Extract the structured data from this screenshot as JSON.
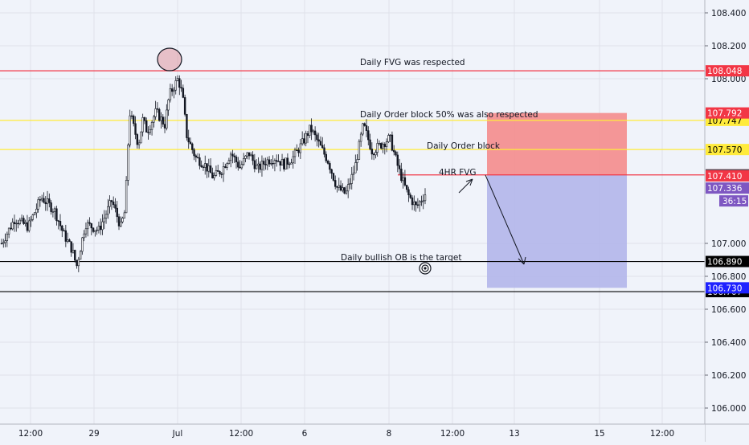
{
  "chart_data": {
    "type": "candlestick",
    "ylim": [
      105.9,
      108.5
    ],
    "y_ticks": [
      {
        "value": 108.4,
        "label": "108.400"
      },
      {
        "value": 108.2,
        "label": "108.200"
      },
      {
        "value": 108.0,
        "label": "108.000"
      },
      {
        "value": 107.0,
        "label": "107.000"
      },
      {
        "value": 106.8,
        "label": "106.800"
      },
      {
        "value": 106.6,
        "label": "106.600"
      },
      {
        "value": 106.4,
        "label": "106.400"
      },
      {
        "value": 106.2,
        "label": "106.200"
      },
      {
        "value": 106.0,
        "label": "106.000"
      }
    ],
    "x_ticks": [
      "12:00",
      "29",
      "Jul",
      "12:00",
      "6",
      "8",
      "12:00",
      "13",
      "15",
      "12:00"
    ],
    "horizontal_levels": [
      {
        "value": 108.048,
        "label": "108.048",
        "color": "#f23645",
        "text_color": "#ffffff",
        "name": "daily-fvg-line"
      },
      {
        "value": 107.747,
        "label": "107.747",
        "color": "#ffeb3b",
        "text_color": "#000000",
        "name": "order-block-50-line"
      },
      {
        "value": 107.57,
        "label": "107.570",
        "color": "#ffeb3b",
        "text_color": "#000000",
        "name": "daily-order-block-line"
      },
      {
        "value": 107.416,
        "label": "107.416",
        "color": "#f23645",
        "text_color": "#ffffff",
        "name": "4hr-fvg-line"
      },
      {
        "value": 106.89,
        "label": "106.890",
        "color": "#000000",
        "text_color": "#ffffff",
        "name": "daily-bullish-ob-line"
      },
      {
        "value": 106.707,
        "label": "106.707",
        "color": "#000000",
        "text_color": "#ffffff",
        "name": "lower-black-line"
      }
    ],
    "price_tags": [
      {
        "value": 107.792,
        "label": "107.792",
        "bg": "#f23645",
        "fg": "#ffffff"
      },
      {
        "value": 107.416,
        "label": "107.416",
        "bg": "#434651",
        "fg": "#ffffff"
      },
      {
        "value": 107.41,
        "label": "107.410",
        "bg": "#f23645",
        "fg": "#ffffff"
      },
      {
        "value": 107.336,
        "label": "107.336",
        "bg": "#7e57c2",
        "fg": "#ffffff"
      },
      {
        "value": 106.73,
        "label": "106.730",
        "bg": "#1e22ff",
        "fg": "#ffffff"
      }
    ],
    "countdown": "36:15",
    "position": {
      "entry": 107.416,
      "stop": 107.792,
      "target": 106.73,
      "stop_color": "#f48c8c",
      "target_color": "#b3b6ea"
    },
    "annotations": [
      "Daily FVG was respected",
      "Daily Order block 50% was also respected",
      "Daily Order block",
      "4HR FVG",
      "Daily bullish OB is the target"
    ],
    "price_path": [
      [
        0,
        107.0
      ],
      [
        3,
        107.15
      ],
      [
        6,
        107.1
      ],
      [
        9,
        107.28
      ],
      [
        12,
        107.2
      ],
      [
        14,
        107.06
      ],
      [
        16,
        106.96
      ],
      [
        17,
        106.86
      ],
      [
        19,
        107.12
      ],
      [
        22,
        107.08
      ],
      [
        25,
        107.26
      ],
      [
        27,
        107.1
      ],
      [
        28,
        107.2
      ],
      [
        29,
        107.8
      ],
      [
        31,
        107.6
      ],
      [
        32,
        107.75
      ],
      [
        33,
        107.68
      ],
      [
        35,
        107.8
      ],
      [
        37,
        107.72
      ],
      [
        38,
        107.9
      ],
      [
        40,
        108.0
      ],
      [
        41,
        107.9
      ],
      [
        42,
        107.65
      ],
      [
        44,
        107.52
      ],
      [
        46,
        107.48
      ],
      [
        48,
        107.4
      ],
      [
        50,
        107.45
      ],
      [
        52,
        107.55
      ],
      [
        54,
        107.46
      ],
      [
        56,
        107.55
      ],
      [
        58,
        107.45
      ],
      [
        60,
        107.5
      ],
      [
        62,
        107.52
      ],
      [
        64,
        107.48
      ],
      [
        66,
        107.52
      ],
      [
        68,
        107.6
      ],
      [
        70,
        107.7
      ],
      [
        72,
        107.6
      ],
      [
        74,
        107.5
      ],
      [
        76,
        107.34
      ],
      [
        78,
        107.3
      ],
      [
        80,
        107.45
      ],
      [
        82,
        107.72
      ],
      [
        84,
        107.56
      ],
      [
        86,
        107.6
      ],
      [
        88,
        107.64
      ],
      [
        90,
        107.45
      ],
      [
        92,
        107.3
      ],
      [
        94,
        107.22
      ],
      [
        96,
        107.3
      ]
    ]
  }
}
